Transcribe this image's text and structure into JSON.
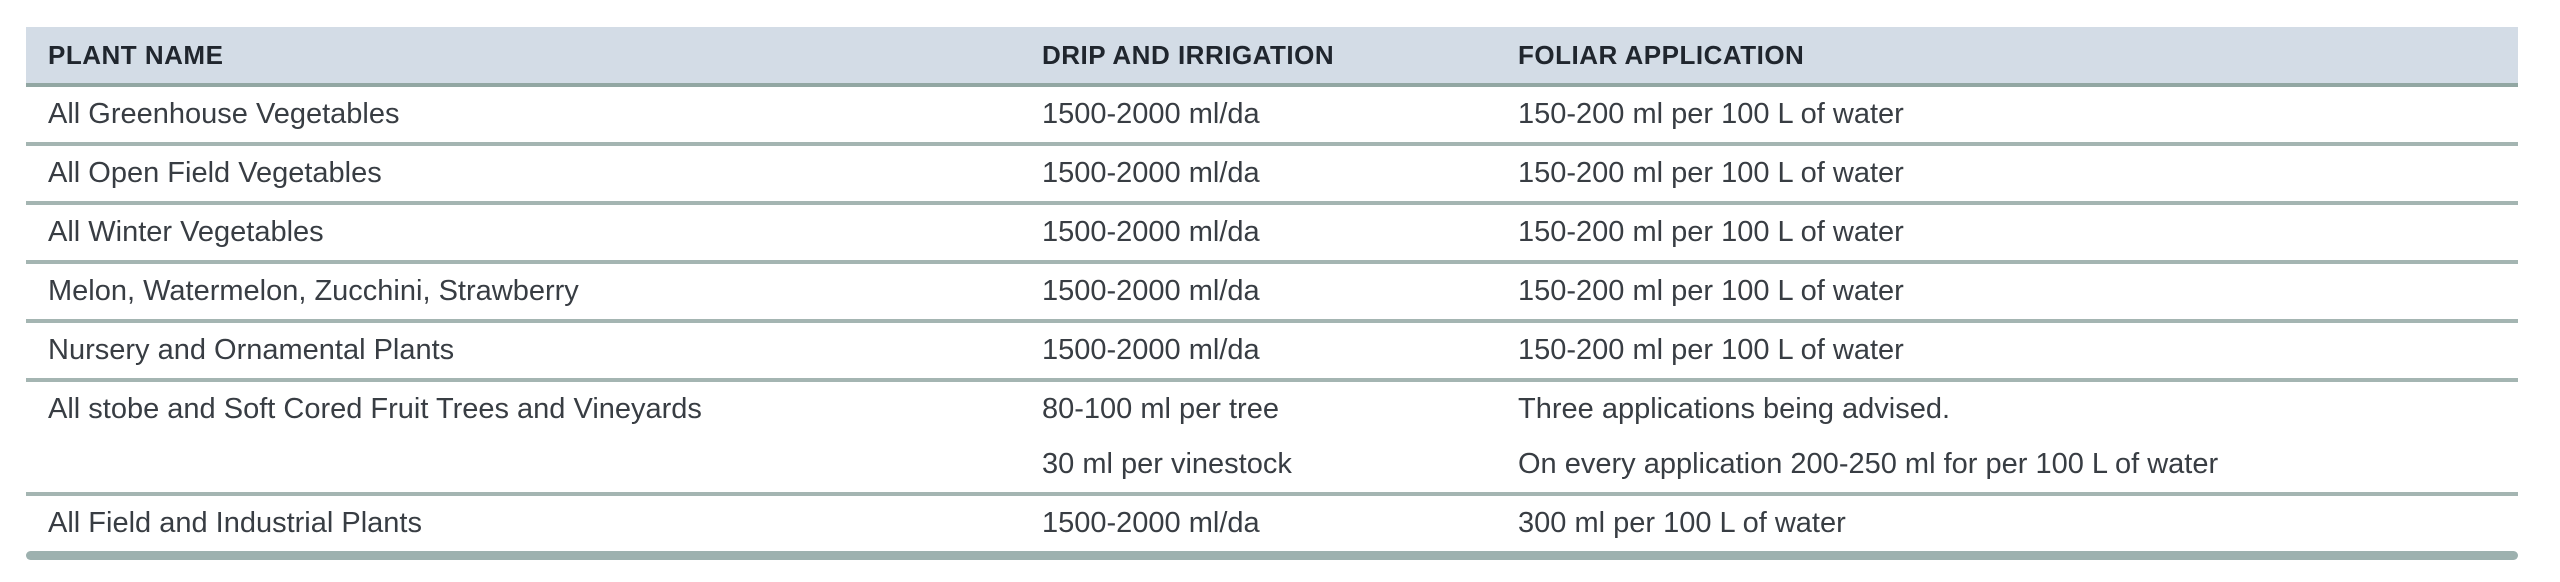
{
  "table": {
    "columns": [
      {
        "label": "PLANT NAME"
      },
      {
        "label": "DRIP AND IRRIGATION"
      },
      {
        "label": "FOLIAR APPLICATION"
      }
    ],
    "rows": [
      {
        "plant": "All Greenhouse Vegetables",
        "drip": [
          "1500-2000 ml/da"
        ],
        "foliar": [
          "150-200 ml per 100 L of water"
        ]
      },
      {
        "plant": "All Open Field Vegetables",
        "drip": [
          "1500-2000 ml/da"
        ],
        "foliar": [
          "150-200 ml per 100 L of water"
        ]
      },
      {
        "plant": "All Winter Vegetables",
        "drip": [
          "1500-2000 ml/da"
        ],
        "foliar": [
          "150-200 ml per 100 L of water"
        ]
      },
      {
        "plant": "Melon, Watermelon, Zucchini, Strawberry",
        "drip": [
          "1500-2000 ml/da"
        ],
        "foliar": [
          "150-200 ml per 100 L of water"
        ]
      },
      {
        "plant": "Nursery and Ornamental Plants",
        "drip": [
          "1500-2000 ml/da"
        ],
        "foliar": [
          "150-200 ml per 100 L of water"
        ]
      },
      {
        "plant": "All stobe and Soft Cored Fruit Trees and Vineyards",
        "drip": [
          "80-100 ml per tree",
          "30 ml per vinestock"
        ],
        "foliar": [
          "Three applications being advised.",
          "On every application 200-250 ml for per 100 L of water"
        ]
      },
      {
        "plant": "All Field and Industrial Plants",
        "drip": [
          "1500-2000 ml/da"
        ],
        "foliar": [
          "300 ml per 100 L of water"
        ]
      }
    ]
  },
  "colors": {
    "page_bg": "#ffffff",
    "header_bg": "#d3dce6",
    "header_text": "#20262e",
    "header_divider": "#92a7a3",
    "row_divider": "#a4b5b2",
    "bottom_border": "#9db1af",
    "body_text": "#383d43"
  }
}
